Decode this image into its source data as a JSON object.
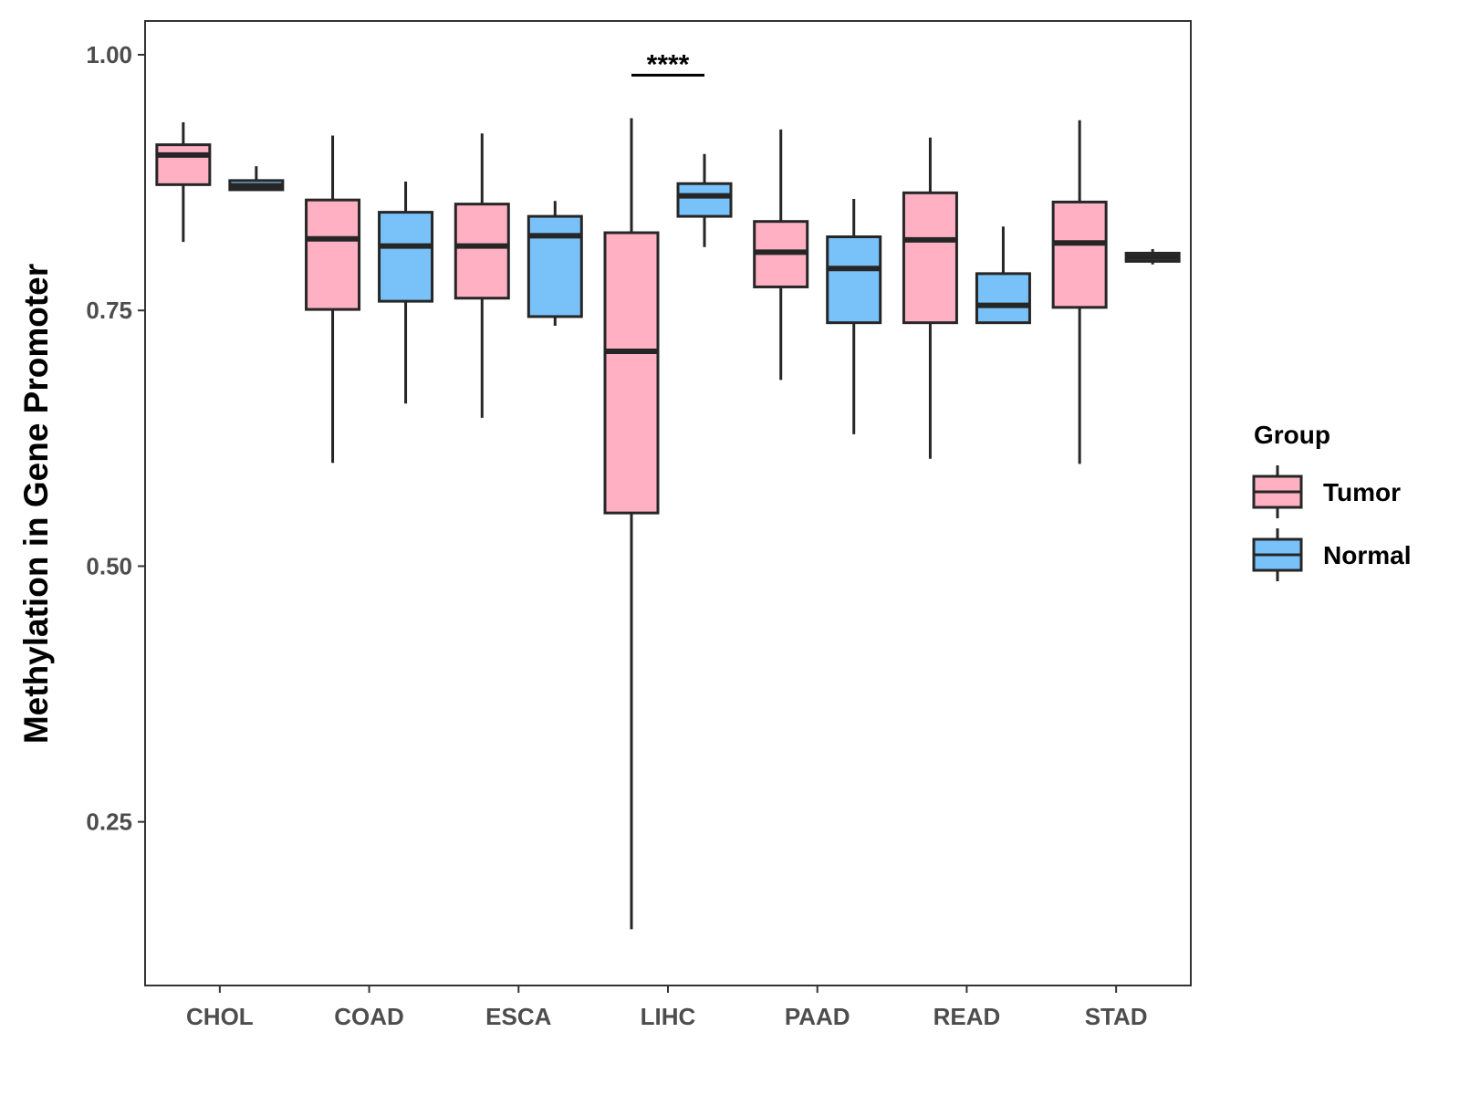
{
  "chart_data": {
    "type": "boxplot",
    "title": "",
    "xlabel": "",
    "ylabel": "Methylation in Gene Promoter",
    "ylim": [
      0.09,
      1.033
    ],
    "yticks": [
      {
        "value": 0.25,
        "label": "0.25"
      },
      {
        "value": 0.5,
        "label": "0.50"
      },
      {
        "value": 0.75,
        "label": "0.75"
      },
      {
        "value": 1.0,
        "label": "1.00"
      }
    ],
    "categories": [
      "CHOL",
      "COAD",
      "ESCA",
      "LIHC",
      "PAAD",
      "READ",
      "STAD"
    ],
    "series": [
      {
        "name": "Tumor",
        "color": "#FFB0C3",
        "boxes": [
          {
            "min": 0.817,
            "q1": 0.873,
            "median": 0.902,
            "q3": 0.912,
            "max": 0.934
          },
          {
            "min": 0.601,
            "q1": 0.751,
            "median": 0.82,
            "q3": 0.858,
            "max": 0.921
          },
          {
            "min": 0.645,
            "q1": 0.762,
            "median": 0.813,
            "q3": 0.854,
            "max": 0.923
          },
          {
            "min": 0.145,
            "q1": 0.552,
            "median": 0.71,
            "q3": 0.826,
            "max": 0.938
          },
          {
            "min": 0.682,
            "q1": 0.773,
            "median": 0.807,
            "q3": 0.837,
            "max": 0.927
          },
          {
            "min": 0.605,
            "q1": 0.738,
            "median": 0.819,
            "q3": 0.865,
            "max": 0.919
          },
          {
            "min": 0.6,
            "q1": 0.753,
            "median": 0.816,
            "q3": 0.856,
            "max": 0.936
          }
        ]
      },
      {
        "name": "Normal",
        "color": "#78C1F9",
        "boxes": [
          {
            "min": 0.868,
            "q1": 0.868,
            "median": 0.872,
            "q3": 0.877,
            "max": 0.891
          },
          {
            "min": 0.659,
            "q1": 0.759,
            "median": 0.813,
            "q3": 0.846,
            "max": 0.876
          },
          {
            "min": 0.735,
            "q1": 0.744,
            "median": 0.823,
            "q3": 0.842,
            "max": 0.857
          },
          {
            "min": 0.812,
            "q1": 0.842,
            "median": 0.862,
            "q3": 0.874,
            "max": 0.903
          },
          {
            "min": 0.629,
            "q1": 0.738,
            "median": 0.791,
            "q3": 0.822,
            "max": 0.859
          },
          {
            "min": 0.738,
            "q1": 0.738,
            "median": 0.755,
            "q3": 0.786,
            "max": 0.832
          },
          {
            "min": 0.795,
            "q1": 0.798,
            "median": 0.802,
            "q3": 0.806,
            "max": 0.81
          }
        ]
      }
    ],
    "annotations": [
      {
        "category": "LIHC",
        "text": "****",
        "y": 0.98
      }
    ],
    "legend": {
      "title": "Group",
      "position": "right",
      "entries": [
        "Tumor",
        "Normal"
      ]
    },
    "grid": false
  }
}
